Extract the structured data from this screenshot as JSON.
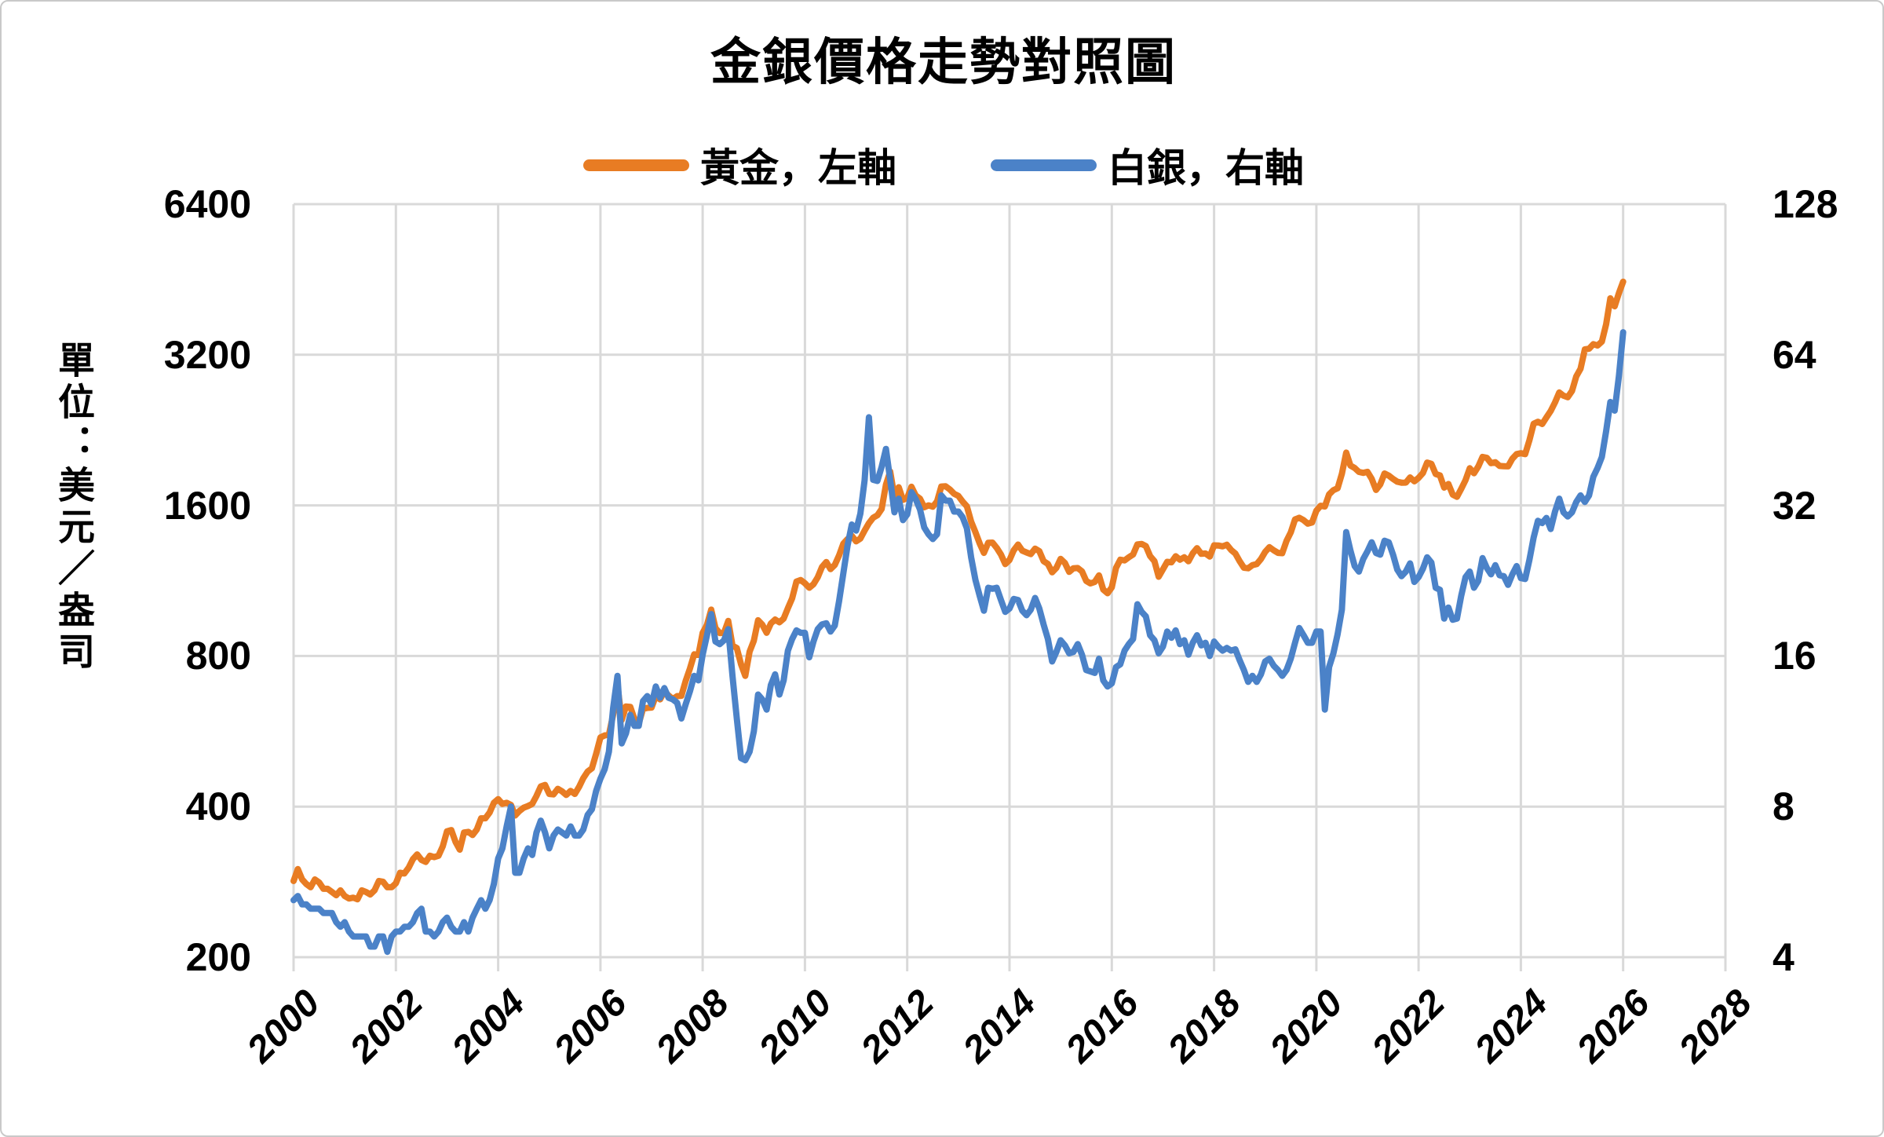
{
  "title": "金銀價格走勢對照圖",
  "colors": {
    "gold": "#E87C23",
    "silver": "#4B82C8",
    "gridline": "#D9D9D9",
    "axis_text": "#000000",
    "background": "#FFFFFF",
    "border": "#C9C9C9"
  },
  "chart_data": {
    "type": "line",
    "title": "金銀價格走勢對照圖",
    "grid": true,
    "legend_position": "top",
    "x": {
      "start_year": 2000,
      "step_months": 1,
      "end_year": 2026,
      "axis_min": 2000,
      "axis_max": 2028,
      "tick_years": [
        2000,
        2002,
        2004,
        2006,
        2008,
        2010,
        2012,
        2014,
        2016,
        2018,
        2020,
        2022,
        2024,
        2026,
        2028
      ]
    },
    "left_axis": {
      "label": "單位：美元／盎司",
      "scale": "log2",
      "min": 200,
      "max": 6400,
      "ticks": [
        6400,
        3200,
        1600,
        800,
        400,
        200
      ]
    },
    "right_axis": {
      "scale": "log2",
      "min": 4,
      "max": 128,
      "ticks": [
        128,
        64,
        32,
        16,
        8,
        4
      ]
    },
    "series": [
      {
        "name": "黃金，左軸",
        "axis": "left",
        "color": "#E87C23",
        "values": [
          284,
          300,
          286,
          280,
          276,
          286,
          282,
          274,
          274,
          270,
          266,
          272,
          265,
          262,
          263,
          261,
          272,
          270,
          267,
          272,
          284,
          283,
          276,
          276,
          281,
          295,
          294,
          302,
          314,
          321,
          313,
          310,
          319,
          317,
          319,
          333,
          357,
          359,
          340,
          328,
          355,
          356,
          351,
          360,
          379,
          379,
          389,
          407,
          414,
          405,
          407,
          403,
          384,
          392,
          398,
          401,
          405,
          420,
          439,
          442,
          424,
          423,
          434,
          429,
          422,
          430,
          424,
          438,
          456,
          470,
          477,
          510,
          550,
          555,
          557,
          611,
          700,
          596,
          634,
          633,
          598,
          586,
          627,
          630,
          631,
          665,
          655,
          680,
          667,
          656,
          665,
          666,
          713,
          755,
          806,
          804,
          890,
          923,
          990,
          910,
          889,
          890,
          940,
          839,
          830,
          770,
          730,
          816,
          858,
          943,
          924,
          890,
          929,
          946,
          934,
          950,
          997,
          1043,
          1127,
          1135,
          1118,
          1095,
          1113,
          1149,
          1205,
          1233,
          1193,
          1216,
          1271,
          1342,
          1370,
          1391,
          1356,
          1373,
          1424,
          1474,
          1512,
          1529,
          1573,
          1760,
          1870,
          1666,
          1739,
          1641,
          1656,
          1743,
          1674,
          1650,
          1586,
          1600,
          1590,
          1630,
          1745,
          1747,
          1722,
          1688,
          1671,
          1628,
          1593,
          1485,
          1414,
          1343,
          1286,
          1347,
          1348,
          1316,
          1276,
          1221,
          1244,
          1301,
          1336,
          1299,
          1288,
          1279,
          1311,
          1296,
          1238,
          1222,
          1176,
          1200,
          1251,
          1227,
          1178,
          1198,
          1199,
          1181,
          1130,
          1117,
          1125,
          1159,
          1086,
          1068,
          1097,
          1200,
          1246,
          1242,
          1260,
          1276,
          1337,
          1340,
          1327,
          1267,
          1238,
          1152,
          1192,
          1234,
          1231,
          1266,
          1246,
          1260,
          1237,
          1283,
          1314,
          1280,
          1282,
          1264,
          1331,
          1330,
          1325,
          1335,
          1303,
          1282,
          1238,
          1201,
          1198,
          1215,
          1221,
          1250,
          1292,
          1320,
          1301,
          1286,
          1284,
          1359,
          1413,
          1500,
          1511,
          1495,
          1471,
          1479,
          1561,
          1597,
          1592,
          1683,
          1716,
          1732,
          1850,
          2040,
          1922,
          1900,
          1866,
          1858,
          1867,
          1808,
          1718,
          1762,
          1853,
          1835,
          1807,
          1784,
          1776,
          1777,
          1820,
          1787,
          1816,
          1856,
          1948,
          1937,
          1848,
          1837,
          1736,
          1765,
          1681,
          1664,
          1726,
          1797,
          1898,
          1855,
          1913,
          2000,
          1992,
          1943,
          1951,
          1918,
          1916,
          1915,
          1984,
          2026,
          2034,
          2025,
          2160,
          2330,
          2351,
          2327,
          2398,
          2470,
          2570,
          2690,
          2651,
          2633,
          2710,
          2897,
          3000,
          3280,
          3290,
          3360,
          3340,
          3400,
          3680,
          4150,
          4000,
          4250,
          4480
        ]
      },
      {
        "name": "白銀，右軸",
        "axis": "right",
        "color": "#4B82C8",
        "values": [
          5.2,
          5.3,
          5.1,
          5.1,
          5.0,
          5.0,
          5.0,
          4.9,
          4.9,
          4.9,
          4.7,
          4.6,
          4.7,
          4.5,
          4.4,
          4.4,
          4.4,
          4.4,
          4.2,
          4.2,
          4.4,
          4.4,
          4.1,
          4.4,
          4.5,
          4.5,
          4.6,
          4.6,
          4.7,
          4.9,
          5.0,
          4.5,
          4.5,
          4.4,
          4.5,
          4.7,
          4.8,
          4.6,
          4.5,
          4.5,
          4.7,
          4.5,
          4.8,
          5.0,
          5.2,
          5.0,
          5.2,
          5.6,
          6.3,
          6.6,
          7.3,
          8.0,
          5.9,
          5.9,
          6.3,
          6.6,
          6.4,
          7.1,
          7.5,
          7.1,
          6.6,
          7.0,
          7.2,
          7.1,
          7.0,
          7.3,
          7.0,
          7.0,
          7.2,
          7.7,
          7.9,
          8.6,
          9.1,
          9.5,
          10.3,
          12.6,
          14.6,
          10.7,
          11.2,
          12.2,
          11.6,
          11.6,
          13.0,
          13.3,
          12.8,
          13.9,
          13.2,
          13.8,
          13.2,
          13.1,
          12.9,
          12.0,
          12.8,
          13.6,
          14.6,
          14.3,
          16.1,
          17.6,
          19.4,
          17.1,
          16.9,
          17.2,
          18.1,
          14.6,
          12.0,
          10.0,
          9.9,
          10.3,
          11.3,
          13.4,
          13.1,
          12.5,
          14.0,
          14.7,
          13.4,
          14.3,
          16.4,
          17.3,
          18.0,
          17.8,
          17.8,
          15.9,
          17.1,
          18.1,
          18.5,
          18.6,
          17.9,
          18.4,
          20.6,
          23.4,
          26.6,
          29.3,
          28.5,
          30.8,
          35.9,
          48.0,
          36.0,
          35.8,
          38.2,
          41.5,
          36.0,
          31.0,
          33.0,
          29.9,
          30.7,
          34.0,
          32.9,
          31.4,
          28.9,
          28.0,
          27.4,
          28.0,
          33.5,
          32.7,
          32.7,
          31.1,
          31.1,
          30.3,
          28.8,
          25.2,
          22.7,
          21.1,
          19.7,
          21.9,
          21.8,
          21.9,
          20.7,
          19.6,
          19.9,
          20.8,
          20.7,
          19.7,
          19.3,
          19.8,
          20.9,
          19.9,
          18.5,
          17.3,
          15.6,
          16.3,
          17.2,
          16.8,
          16.2,
          16.3,
          16.9,
          16.1,
          15.0,
          14.9,
          14.8,
          15.8,
          14.3,
          13.9,
          14.1,
          15.2,
          15.4,
          16.4,
          16.9,
          17.3,
          20.3,
          19.6,
          19.2,
          17.6,
          17.2,
          16.2,
          16.7,
          17.9,
          17.4,
          18.0,
          16.9,
          17.2,
          16.1,
          17.0,
          17.6,
          16.8,
          17.0,
          16.0,
          17.1,
          16.7,
          16.4,
          16.6,
          16.4,
          16.5,
          15.7,
          15.0,
          14.2,
          14.6,
          14.2,
          14.7,
          15.6,
          15.8,
          15.3,
          15.0,
          14.6,
          15.0,
          15.8,
          17.0,
          18.2,
          17.6,
          17.0,
          17.0,
          17.9,
          17.9,
          12.5,
          15.2,
          16.2,
          17.7,
          19.8,
          28.3,
          26.0,
          24.2,
          23.6,
          25.0,
          25.9,
          27.0,
          25.7,
          25.5,
          27.2,
          27.0,
          25.5,
          23.8,
          23.1,
          23.6,
          24.5,
          22.5,
          23.0,
          23.9,
          25.2,
          24.6,
          21.9,
          21.7,
          19.0,
          20.0,
          18.9,
          19.0,
          21.1,
          23.0,
          23.6,
          21.9,
          22.6,
          25.1,
          24.0,
          23.3,
          24.3,
          23.2,
          23.1,
          22.2,
          23.3,
          24.2,
          22.9,
          22.8,
          24.9,
          27.6,
          29.8,
          29.5,
          30.2,
          28.7,
          31.1,
          33.0,
          31.0,
          30.4,
          31.0,
          32.5,
          33.5,
          32.5,
          33.5,
          36.5,
          38.0,
          40.0,
          45.0,
          51.5,
          49.5,
          58.0,
          71.0
        ]
      }
    ]
  }
}
